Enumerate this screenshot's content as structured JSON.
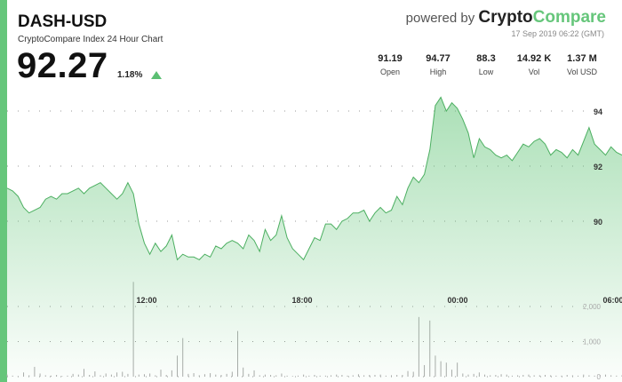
{
  "header": {
    "pair": "DASH-USD",
    "subtitle": "CryptoCompare Index 24 Hour Chart",
    "price": "92.27",
    "change": "1.18%",
    "change_icon": "triangle-up-icon",
    "accent_color": "#66c67b"
  },
  "branding": {
    "powered_by": "powered by",
    "brand_part1": "Crypto",
    "brand_part2": "Compare",
    "timestamp": "17 Sep 2019 06:22 (GMT)"
  },
  "stats": [
    {
      "value": "91.19",
      "label": "Open"
    },
    {
      "value": "94.77",
      "label": "High"
    },
    {
      "value": "88.3",
      "label": "Low"
    },
    {
      "value": "14.92 K",
      "label": "Vol"
    },
    {
      "value": "1.37 M",
      "label": "Vol USD"
    }
  ],
  "chart_data": {
    "type": "area",
    "x_ticks": [
      "12:00",
      "18:00",
      "00:00",
      "06:00"
    ],
    "price_ticks": [
      94,
      92,
      90
    ],
    "volume_ticks": [
      2000,
      1000,
      0
    ],
    "volume_tick_labels": [
      "2,000",
      "1,000",
      "0"
    ],
    "price_range": [
      88.3,
      94.77
    ],
    "series": [
      {
        "values": [
          91.2,
          91.1,
          90.9,
          90.5,
          90.3,
          90.4,
          90.5,
          90.8,
          90.9,
          90.8,
          91.0,
          91.0,
          91.1,
          91.2,
          91.0,
          91.2,
          91.3,
          91.4,
          91.2,
          91.0,
          90.8,
          91.0,
          91.4,
          91.0,
          89.9,
          89.2,
          88.8,
          89.2,
          88.9,
          89.1,
          89.5,
          88.6,
          88.8,
          88.7,
          88.7,
          88.6,
          88.8,
          88.7,
          89.1,
          89.0,
          89.2,
          89.3,
          89.2,
          89.0,
          89.5,
          89.3,
          88.9,
          89.7,
          89.3,
          89.5,
          90.2,
          89.4,
          89.0,
          88.8,
          88.6,
          89.0,
          89.4,
          89.3,
          89.9,
          89.9,
          89.7,
          90.0,
          90.1,
          90.3,
          90.3,
          90.4,
          90.0,
          90.3,
          90.5,
          90.3,
          90.4,
          90.9,
          90.6,
          91.2,
          91.6,
          91.4,
          91.7,
          92.6,
          94.2,
          94.5,
          94.0,
          94.3,
          94.1,
          93.7,
          93.2,
          92.3,
          93.0,
          92.7,
          92.6,
          92.4,
          92.3,
          92.4,
          92.2,
          92.5,
          92.8,
          92.7,
          92.9,
          93.0,
          92.8,
          92.4,
          92.6,
          92.5,
          92.3,
          92.6,
          92.4,
          92.9,
          93.4,
          92.8,
          92.6,
          92.4,
          92.7,
          92.5,
          92.4
        ]
      }
    ],
    "volume": [
      60,
      30,
      20,
      120,
      40,
      280,
      90,
      40,
      30,
      50,
      20,
      30,
      80,
      60,
      220,
      50,
      150,
      40,
      90,
      60,
      120,
      140,
      80,
      2700,
      60,
      70,
      90,
      40,
      200,
      50,
      180,
      600,
      1100,
      80,
      100,
      40,
      70,
      100,
      60,
      50,
      80,
      140,
      1300,
      260,
      80,
      180,
      40,
      60,
      50,
      40,
      90,
      30,
      20,
      30,
      60,
      30,
      50,
      30,
      30,
      40,
      60,
      50,
      30,
      40,
      70,
      40,
      50,
      50,
      60,
      30,
      40,
      50,
      50,
      160,
      140,
      1700,
      330,
      1600,
      600,
      440,
      400,
      200,
      400,
      90,
      60,
      80,
      120,
      60,
      40,
      50,
      70,
      60,
      30,
      40,
      50,
      60,
      40,
      40,
      50,
      40,
      30,
      30,
      50,
      40,
      30,
      60,
      40,
      30,
      50,
      60,
      40,
      30,
      40
    ]
  }
}
